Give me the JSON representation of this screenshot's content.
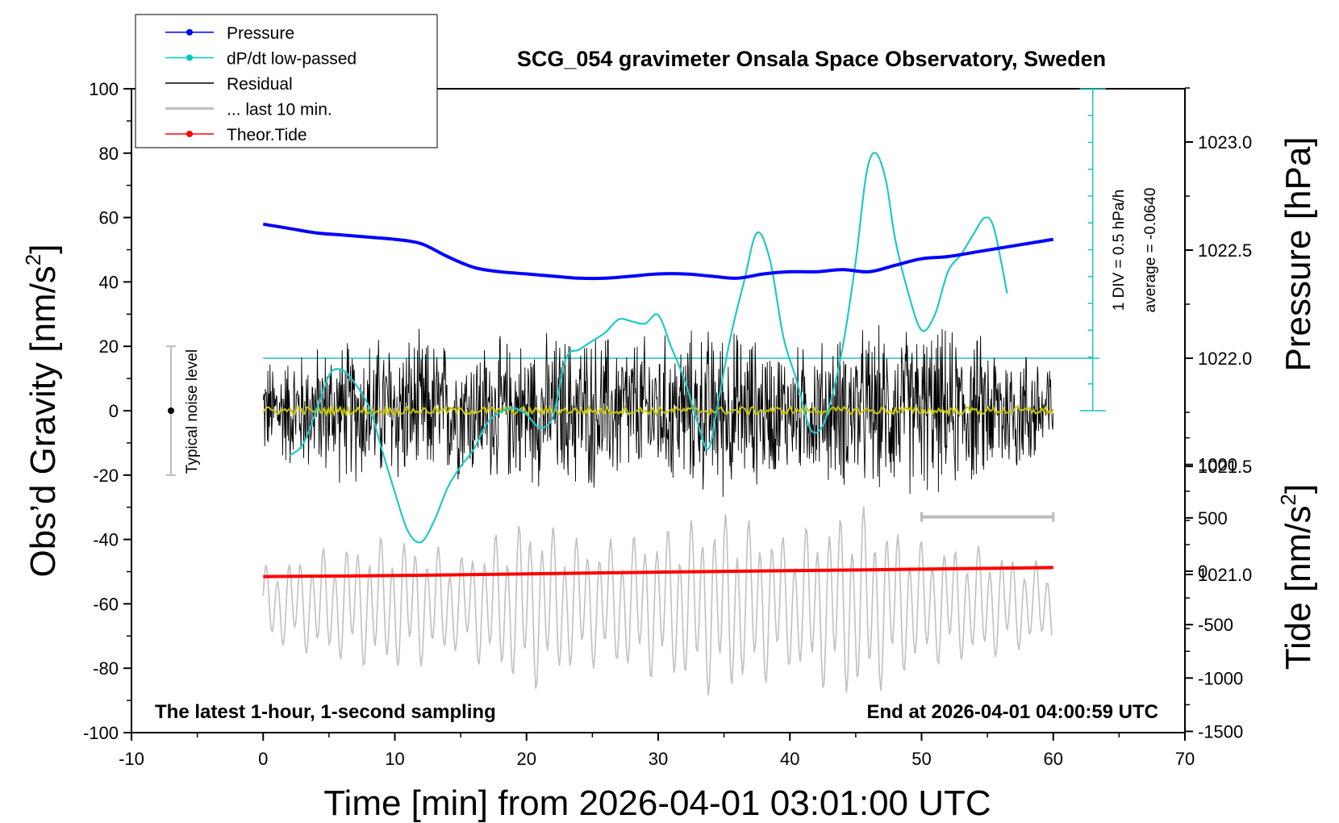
{
  "chart_data": {
    "type": "line",
    "title": "SCG_054 gravimeter Onsala Space Observatory, Sweden",
    "xlabel": "Time [min] from 2026-04-01 03:01:00 UTC",
    "xlim": [
      -10,
      70
    ],
    "x_ticks": [
      "-10",
      "0",
      "10",
      "20",
      "30",
      "40",
      "50",
      "60",
      "70"
    ],
    "left_axis": {
      "label_main": "Obs’d Gravity [nm/s",
      "label_sup": "2",
      "label_end": "]",
      "ylim": [
        -100,
        100
      ],
      "ticks": [
        "100",
        "80",
        "60",
        "40",
        "20",
        "0",
        "-20",
        "-40",
        "-60",
        "-80",
        "-100"
      ]
    },
    "pressure_axis": {
      "label": "Pressure [hPa]",
      "ylim": [
        1020.5,
        1023.5
      ],
      "ticks": [
        "1023.0",
        "1022.5",
        "1022.0",
        "1021.5",
        "1021.0"
      ]
    },
    "tide_axis": {
      "label_main": "Tide [nm/s",
      "label_sup": "2",
      "label_end": "]",
      "ylim": [
        -1500,
        1500
      ],
      "ticks": [
        "1000",
        "500",
        "0",
        "-500",
        "-1000",
        "-1500"
      ]
    },
    "legend_position": "top-left",
    "legend": [
      {
        "label": "Pressure",
        "color": "#0000ff",
        "marker": true
      },
      {
        "label": "dP/dt low-passed",
        "color": "#00c8c8",
        "marker": true
      },
      {
        "label": "Residual",
        "color": "#000000",
        "marker": false
      },
      {
        "label": "... last 10 min.",
        "color": "#c0c0c0",
        "marker": false
      },
      {
        "label": "Theor.Tide",
        "color": "#ff0000",
        "marker": true
      }
    ],
    "annotations": {
      "noise_label": "Typical noise level",
      "noise_range": [
        -20,
        20
      ],
      "noise_x": -7,
      "dpdt_scale": "1 DIV = 0.5 hPa/h",
      "dpdt_average": "average = -0.0640",
      "dpdt_baseline_hpa": 1022.0,
      "footer_left": "The latest 1-hour, 1-second sampling",
      "footer_right": "End at 2026-04-01 04:00:59 UTC",
      "last10_bar_x": [
        50,
        60
      ],
      "last10_bar_y": -33
    },
    "series": [
      {
        "name": "Pressure",
        "color": "#0000ff",
        "axis": "pressure",
        "x": [
          0,
          2,
          4,
          6,
          8,
          10,
          12,
          14,
          16,
          18,
          20,
          22,
          24,
          26,
          28,
          30,
          32,
          34,
          36,
          38,
          40,
          42,
          44,
          46,
          48,
          50,
          52,
          54,
          56,
          58,
          60
        ],
        "y": [
          1022.62,
          1022.6,
          1022.58,
          1022.57,
          1022.56,
          1022.55,
          1022.53,
          1022.47,
          1022.42,
          1022.4,
          1022.39,
          1022.38,
          1022.37,
          1022.37,
          1022.38,
          1022.39,
          1022.39,
          1022.38,
          1022.37,
          1022.39,
          1022.4,
          1022.4,
          1022.41,
          1022.4,
          1022.43,
          1022.46,
          1022.47,
          1022.49,
          1022.51,
          1022.53,
          1022.55
        ]
      },
      {
        "name": "dP/dt low-passed",
        "color": "#00c8c8",
        "axis": "pressure_dpdt",
        "x": [
          2,
          3,
          4,
          5,
          5.7,
          6.5,
          8,
          9,
          10,
          11,
          12,
          13,
          14,
          15,
          16,
          17,
          18,
          19,
          20,
          21,
          22,
          23,
          24,
          25,
          26,
          27,
          28,
          29,
          30,
          31,
          32,
          33,
          33.8,
          34.5,
          35.5,
          36.5,
          37.5,
          38.5,
          39.5,
          40.5,
          41.5,
          42.3,
          43,
          44,
          45,
          45.8,
          46.5,
          47.3,
          48,
          49,
          50,
          51,
          52,
          53,
          54,
          54.8,
          55.5,
          56.5
        ],
        "y": [
          1021.55,
          1021.6,
          1021.75,
          1021.92,
          1021.95,
          1021.92,
          1021.78,
          1021.58,
          1021.38,
          1021.2,
          1021.15,
          1021.25,
          1021.4,
          1021.5,
          1021.58,
          1021.7,
          1021.75,
          1021.77,
          1021.74,
          1021.68,
          1021.73,
          1022.0,
          1022.04,
          1022.08,
          1022.12,
          1022.18,
          1022.17,
          1022.16,
          1022.2,
          1022.05,
          1021.9,
          1021.7,
          1021.58,
          1021.78,
          1022.1,
          1022.35,
          1022.58,
          1022.45,
          1022.1,
          1021.9,
          1021.68,
          1021.67,
          1021.78,
          1022.05,
          1022.45,
          1022.85,
          1022.95,
          1022.82,
          1022.55,
          1022.3,
          1022.13,
          1022.2,
          1022.4,
          1022.48,
          1022.58,
          1022.65,
          1022.6,
          1022.3
        ]
      },
      {
        "name": "Residual",
        "color": "#000000",
        "axis": "gravity",
        "x_range": [
          0,
          60
        ],
        "envelope_x": [
          0,
          5,
          10,
          15,
          20,
          25,
          30,
          35,
          40,
          45,
          50,
          55,
          60
        ],
        "envelope_amp": [
          18,
          24,
          28,
          24,
          26,
          28,
          26,
          30,
          22,
          28,
          30,
          26,
          20
        ]
      },
      {
        "name": "yellow mean",
        "color": "#c8c800",
        "axis": "gravity",
        "x_range": [
          0,
          60
        ],
        "y_level": 0
      },
      {
        "name": "... last 10 min.",
        "color": "#c0c0c0",
        "axis": "gravity",
        "x_range": [
          0,
          60
        ],
        "center": -60,
        "envelope_x": [
          0,
          5,
          10,
          15,
          20,
          25,
          30,
          35,
          40,
          45,
          50,
          55,
          60
        ],
        "envelope_amp": [
          12,
          18,
          22,
          16,
          28,
          20,
          24,
          30,
          22,
          32,
          20,
          18,
          12
        ]
      },
      {
        "name": "Theor.Tide",
        "color": "#ff0000",
        "axis": "tide",
        "x": [
          0,
          10,
          20,
          30,
          40,
          50,
          60
        ],
        "y": [
          -50,
          -40,
          -25,
          -8,
          5,
          20,
          35
        ]
      }
    ]
  }
}
